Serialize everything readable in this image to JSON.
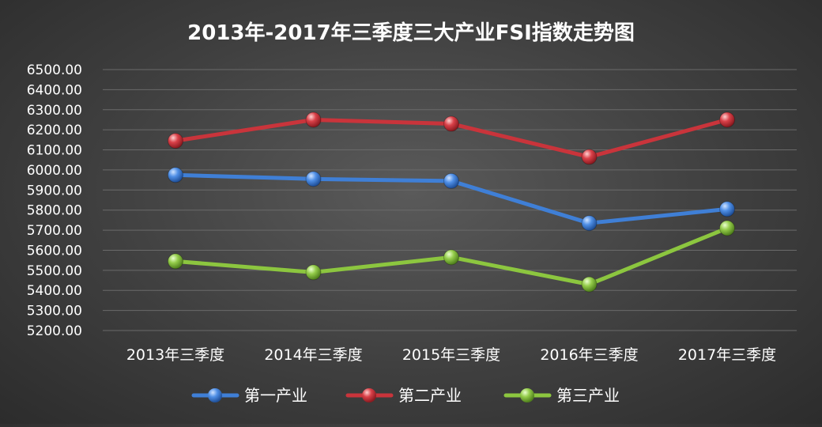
{
  "chart_data": {
    "type": "line",
    "title": "2013年-2017年三季度三大产业FSI指数走势图",
    "xlabel": "",
    "ylabel": "",
    "categories": [
      "2013年三季度",
      "2014年三季度",
      "2015年三季度",
      "2016年三季度",
      "2017年三季度"
    ],
    "series": [
      {
        "name": "第一产业",
        "values": [
          5975,
          5955,
          5945,
          5735,
          5805
        ],
        "color": "#3f7fd6"
      },
      {
        "name": "第二产业",
        "values": [
          6145,
          6250,
          6230,
          6065,
          6250
        ],
        "color": "#c9343b"
      },
      {
        "name": "第三产业",
        "values": [
          5545,
          5490,
          5565,
          5430,
          5710
        ],
        "color": "#8cc63f"
      }
    ],
    "ylim": [
      5200,
      6500
    ],
    "ytick_step": 100,
    "ytick_decimals": 2,
    "grid": true,
    "legend_position": "bottom-center"
  }
}
